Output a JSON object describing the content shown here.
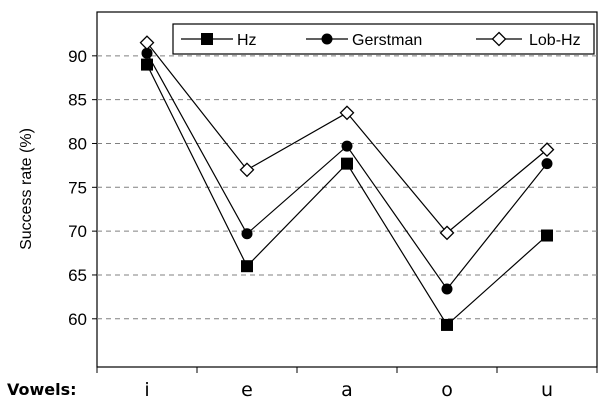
{
  "chart_data": {
    "type": "line",
    "title": "",
    "xlabel": "Vowels:",
    "ylabel": "Success rate (%)",
    "categories": [
      "i",
      "e",
      "a",
      "o",
      "u"
    ],
    "ylim": [
      54.5,
      95
    ],
    "yticks": [
      "60",
      "65",
      "70",
      "75",
      "80",
      "85",
      "90"
    ],
    "grid": "horizontal-dashed",
    "legend_position": "top-right",
    "series": [
      {
        "name": "Hz",
        "marker": "square-filled",
        "values": [
          89,
          66,
          77.7,
          59.3,
          69.5
        ]
      },
      {
        "name": "Gerstman",
        "marker": "circle-filled",
        "values": [
          90.3,
          69.7,
          79.7,
          63.4,
          77.7
        ]
      },
      {
        "name": "Lob-Hz",
        "marker": "diamond-open",
        "values": [
          91.5,
          77,
          83.5,
          69.8,
          79.3
        ]
      }
    ]
  }
}
